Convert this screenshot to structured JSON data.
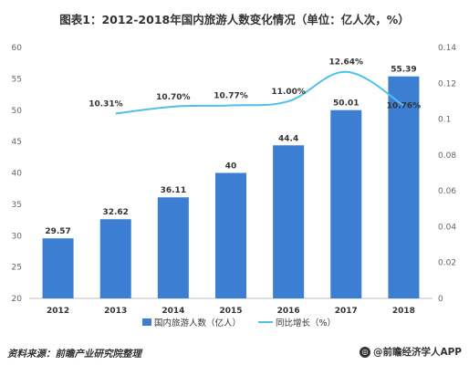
{
  "chart_data": {
    "type": "bar",
    "title": "图表1：2012-2018年国内旅游人数变化情况（单位：亿人次，%）",
    "categories": [
      "2012",
      "2013",
      "2014",
      "2015",
      "2016",
      "2017",
      "2018"
    ],
    "series": [
      {
        "name": "国内旅游人数（亿人）",
        "type": "bar",
        "axis": "left",
        "color": "#3c7ed2",
        "values": [
          29.57,
          32.62,
          36.11,
          40,
          44.4,
          50.01,
          55.39
        ],
        "labels": [
          "29.57",
          "32.62",
          "36.11",
          "40",
          "44.4",
          "50.01",
          "55.39"
        ]
      },
      {
        "name": "同比增长（%）",
        "type": "line",
        "axis": "right",
        "color": "#4fc1ea",
        "values": [
          null,
          0.1031,
          0.107,
          0.1077,
          0.11,
          0.1264,
          0.1076
        ],
        "labels": [
          "",
          "10.31%",
          "10.70%",
          "10.77%",
          "11.00%",
          "12.64%",
          "10.76%"
        ]
      }
    ],
    "y_left": {
      "min": 20,
      "max": 60,
      "ticks": [
        "20",
        "25",
        "30",
        "35",
        "40",
        "45",
        "50",
        "55",
        "60"
      ]
    },
    "y_right": {
      "min": 0,
      "max": 0.14,
      "ticks": [
        "0",
        "0.02",
        "0.04",
        "0.06",
        "0.08",
        "0.1",
        "0.12",
        "0.14"
      ]
    },
    "grid": false,
    "legend_position": "bottom"
  },
  "footer": {
    "source": "资料来源：前瞻产业研究院整理",
    "brand": "@前瞻经济学人APP",
    "brand_icon": "qianzhan-logo-icon"
  }
}
